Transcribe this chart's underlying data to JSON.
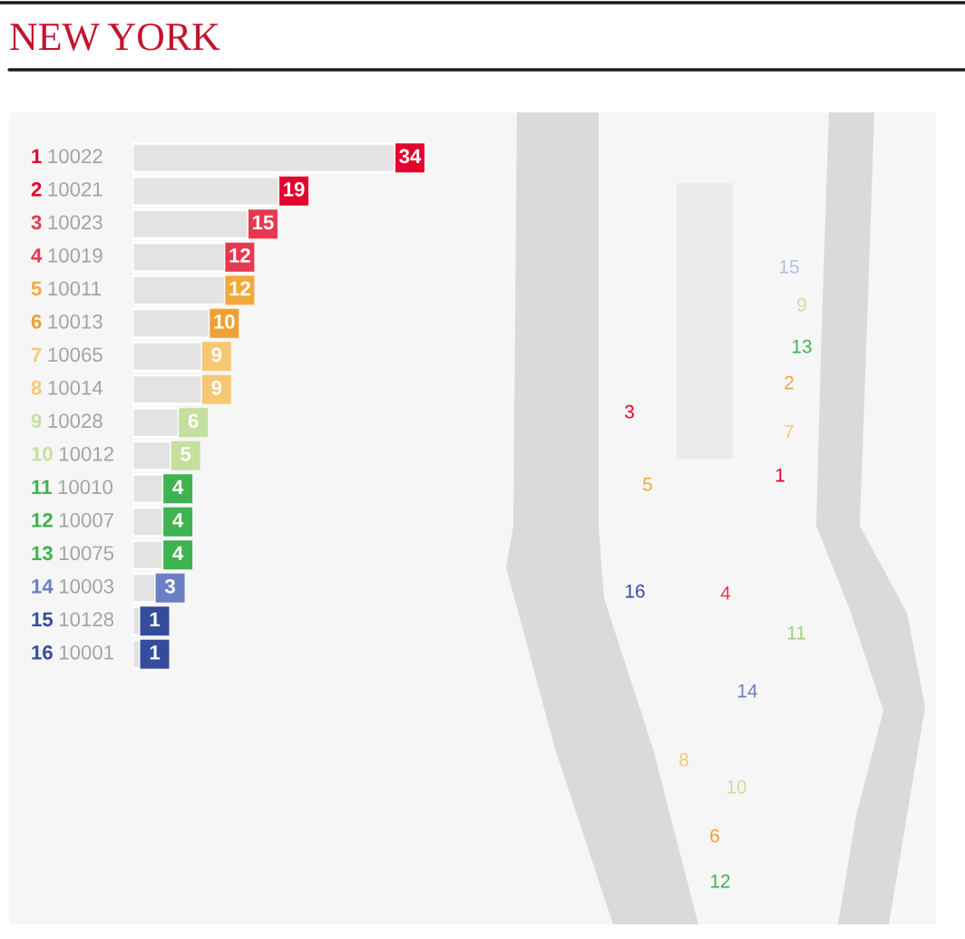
{
  "chart_data": {
    "type": "bar",
    "orientation": "horizontal",
    "title": "NEW YORK",
    "categories": [
      "1 10022",
      "2 10021",
      "3 10023",
      "4 10019",
      "5 10011",
      "6 10013",
      "7 10065",
      "8 10014",
      "9 10028",
      "10 10012",
      "11 10010",
      "12 10007",
      "13 10075",
      "14 10003",
      "15 10128",
      "16 10001"
    ],
    "values": [
      34,
      19,
      15,
      12,
      12,
      10,
      9,
      9,
      6,
      5,
      4,
      4,
      4,
      3,
      1,
      1
    ],
    "color": "#e3e3e3",
    "data_labels": true,
    "tick_labels": "y",
    "annotations": [
      "1",
      "2",
      "3",
      "4",
      "5",
      "6",
      "7",
      "8",
      "9",
      "10",
      "11",
      "12",
      "13",
      "14",
      "15",
      "16"
    ]
  }
}
